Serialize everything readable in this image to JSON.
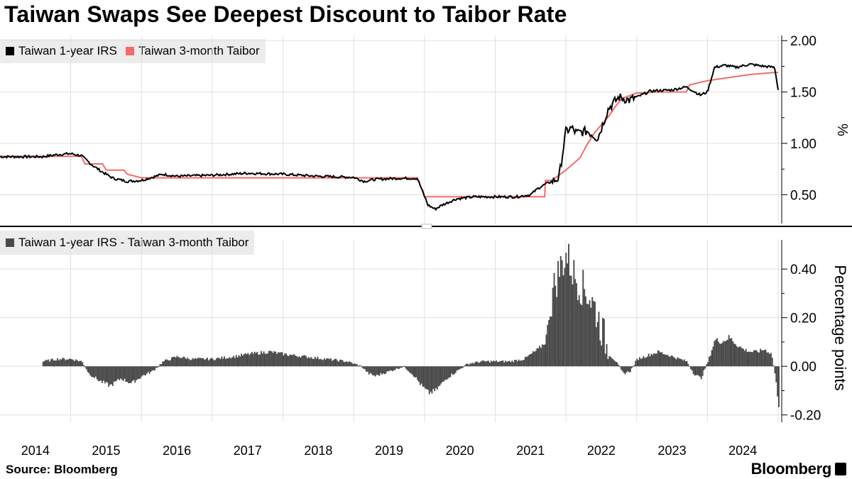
{
  "title": "Taiwan Swaps See Deepest Discount to Taibor Rate",
  "source": "Source: Bloomberg",
  "brand": "Bloomberg",
  "colors": {
    "irs": "#000000",
    "taibor": "#f26b6b",
    "spread": "#4a4a4a",
    "grid": "#e0e0e0",
    "legend_bg": "#ececec"
  },
  "chart_data": [
    {
      "type": "line",
      "panel": "top",
      "ylabel": "%",
      "ylim": [
        0.22,
        2.05
      ],
      "yticks": [
        "2.00",
        "1.50",
        "1.00",
        "0.50"
      ],
      "series": [
        {
          "name": "Taiwan 1-year IRS",
          "x": [
            2014.0,
            2014.6,
            2014.8,
            2015.0,
            2015.15,
            2015.3,
            2015.45,
            2015.6,
            2015.8,
            2016.0,
            2016.3,
            2016.5,
            2017.0,
            2017.5,
            2018.0,
            2018.5,
            2019.0,
            2019.15,
            2019.3,
            2019.6,
            2019.9,
            2020.05,
            2020.15,
            2020.25,
            2020.45,
            2020.7,
            2021.0,
            2021.3,
            2021.5,
            2021.6,
            2021.7,
            2021.9,
            2022.0,
            2022.08,
            2022.15,
            2022.3,
            2022.45,
            2022.6,
            2022.75,
            2022.9,
            2023.0,
            2023.2,
            2023.5,
            2023.7,
            2023.9,
            2024.0,
            2024.1,
            2024.25,
            2024.4,
            2024.6,
            2024.8,
            2024.95,
            2025.0
          ],
          "values": [
            0.87,
            0.87,
            0.89,
            0.9,
            0.88,
            0.79,
            0.72,
            0.66,
            0.63,
            0.64,
            0.7,
            0.68,
            0.69,
            0.71,
            0.7,
            0.68,
            0.67,
            0.63,
            0.65,
            0.66,
            0.66,
            0.4,
            0.36,
            0.4,
            0.46,
            0.48,
            0.48,
            0.48,
            0.5,
            0.56,
            0.6,
            0.66,
            1.12,
            1.15,
            1.1,
            1.12,
            1.05,
            1.34,
            1.45,
            1.42,
            1.45,
            1.51,
            1.52,
            1.55,
            1.47,
            1.5,
            1.74,
            1.76,
            1.74,
            1.77,
            1.75,
            1.74,
            1.52
          ]
        },
        {
          "name": "Taiwan 3-month Taibor",
          "x": [
            2014.0,
            2015.15,
            2015.2,
            2015.45,
            2015.5,
            2015.75,
            2015.8,
            2016.0,
            2016.5,
            2017.0,
            2017.5,
            2018.0,
            2019.0,
            2019.5,
            2019.9,
            2020.0,
            2020.2,
            2021.0,
            2021.5,
            2021.7,
            2021.71,
            2021.8,
            2022.0,
            2022.2,
            2022.3,
            2022.4,
            2022.5,
            2022.6,
            2022.7,
            2022.8,
            2023.0,
            2023.3,
            2023.5,
            2023.7,
            2023.75,
            2024.0,
            2024.3,
            2024.6,
            2024.95,
            2025.0
          ],
          "values": [
            0.875,
            0.875,
            0.8,
            0.8,
            0.74,
            0.74,
            0.7,
            0.665,
            0.665,
            0.665,
            0.665,
            0.665,
            0.665,
            0.665,
            0.665,
            0.48,
            0.48,
            0.48,
            0.48,
            0.48,
            0.64,
            0.64,
            0.74,
            0.86,
            0.99,
            1.1,
            1.18,
            1.26,
            1.36,
            1.44,
            1.49,
            1.5,
            1.5,
            1.5,
            1.57,
            1.61,
            1.64,
            1.67,
            1.69,
            1.69
          ]
        }
      ]
    },
    {
      "type": "bar",
      "panel": "bottom",
      "ylabel": "Percentage points",
      "ylim": [
        -0.23,
        0.52
      ],
      "yticks": [
        "0.40",
        "0.20",
        "0.00",
        "-0.20"
      ],
      "series": [
        {
          "name": "Taiwan 1-year IRS - Taiwan 3-month Taibor",
          "x": [
            2014.6,
            2014.8,
            2015.0,
            2015.15,
            2015.25,
            2015.4,
            2015.55,
            2015.7,
            2015.85,
            2016.0,
            2016.15,
            2016.3,
            2016.5,
            2016.7,
            2017.0,
            2017.3,
            2017.5,
            2017.8,
            2018.0,
            2018.3,
            2018.6,
            2018.9,
            2019.0,
            2019.1,
            2019.2,
            2019.3,
            2019.5,
            2019.7,
            2019.85,
            2019.95,
            2020.05,
            2020.15,
            2020.3,
            2020.45,
            2020.6,
            2020.8,
            2021.0,
            2021.2,
            2021.4,
            2021.5,
            2021.6,
            2021.7,
            2021.8,
            2021.9,
            2022.0,
            2022.05,
            2022.1,
            2022.2,
            2022.3,
            2022.4,
            2022.5,
            2022.6,
            2022.7,
            2022.8,
            2022.9,
            2023.0,
            2023.1,
            2023.2,
            2023.3,
            2023.5,
            2023.7,
            2023.8,
            2023.9,
            2024.0,
            2024.1,
            2024.2,
            2024.3,
            2024.4,
            2024.5,
            2024.6,
            2024.7,
            2024.8,
            2024.9,
            2024.95,
            2025.0
          ],
          "values": [
            0.02,
            0.03,
            0.03,
            0.02,
            -0.03,
            -0.06,
            -0.08,
            -0.05,
            -0.07,
            -0.04,
            -0.02,
            0.02,
            0.04,
            0.03,
            0.03,
            0.04,
            0.05,
            0.06,
            0.05,
            0.04,
            0.03,
            0.02,
            0.01,
            0.0,
            -0.03,
            -0.04,
            -0.02,
            0.0,
            -0.04,
            -0.08,
            -0.11,
            -0.1,
            -0.05,
            -0.02,
            0.01,
            0.02,
            0.02,
            0.02,
            0.03,
            0.05,
            0.07,
            0.1,
            0.3,
            0.4,
            0.46,
            0.42,
            0.38,
            0.33,
            0.3,
            0.24,
            0.15,
            0.05,
            0.02,
            -0.03,
            -0.02,
            0.03,
            0.04,
            0.05,
            0.06,
            0.04,
            0.02,
            -0.03,
            -0.05,
            0.02,
            0.11,
            0.1,
            0.12,
            0.09,
            0.07,
            0.06,
            0.06,
            0.07,
            0.05,
            -0.04,
            -0.16
          ]
        }
      ]
    }
  ],
  "x_axis": {
    "labels": [
      "2014",
      "2015",
      "2016",
      "2017",
      "2018",
      "2019",
      "2020",
      "2021",
      "2022",
      "2023",
      "2024"
    ],
    "xlim": [
      2014.0,
      2025.05
    ]
  }
}
